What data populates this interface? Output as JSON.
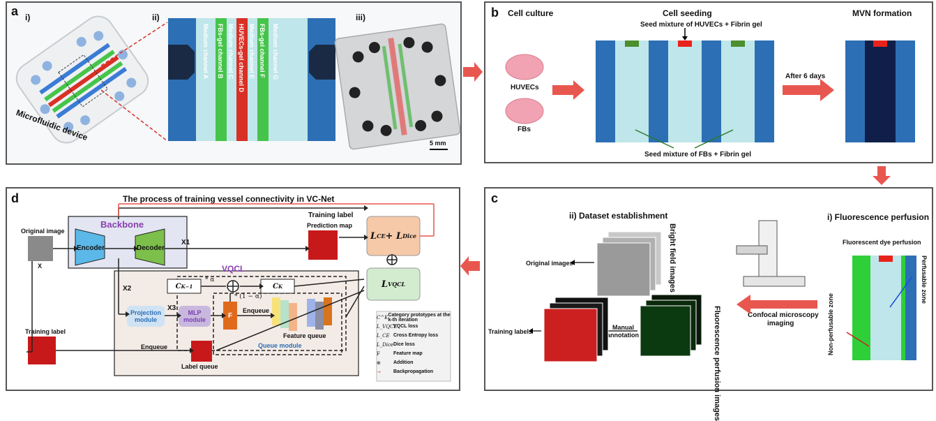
{
  "panel_a": {
    "label": "a",
    "sub_i": "i)",
    "sub_ii": "ii)",
    "sub_iii": "iii)",
    "device_label": "Microfluidic device",
    "channels": [
      "Medium channel A",
      "FBs-gel channel B",
      "Medium channel C",
      "HUVECs-gel channel D",
      "Medium channel E",
      "FBs-gel channel F",
      "Medium channel G"
    ],
    "scale_bar": "5 mm"
  },
  "panel_b": {
    "label": "b",
    "cell_culture": "Cell culture",
    "cell_seeding": "Cell seeding",
    "mvn_formation": "MVN formation",
    "seed_huvec": "Seed mixture of HUVECs + Fibrin gel",
    "seed_fbs": "Seed mixture of FBs + Fibrin gel",
    "huvecs": "HUVECs",
    "fbs": "FBs",
    "after_days": "After 6 days"
  },
  "panel_c": {
    "label": "c",
    "dataset_title": "ii)  Dataset establishment",
    "perfusion_title": "i)  Fluorescence perfusion",
    "dye_perfusion": "Fluorescent dye perfusion",
    "perfusable": "Perfusable zone",
    "non_perfusable": "Non-perfusable zone",
    "bright_field": "Bright field images",
    "original_images": "Original images",
    "fluor_images": "Fluorescence perfusion images",
    "confocal_1": "Confocal microscopy",
    "confocal_2": "imaging",
    "manual_1": "Manual",
    "manual_2": "annotation",
    "training_labels": "Training labels"
  },
  "panel_d": {
    "label": "d",
    "title": "The process of training vessel connectivity in VC-Net",
    "training_label_top": "Training label",
    "original_image": "Original image",
    "x_label": "X",
    "backbone": "Backbone",
    "encoder": "Encoder",
    "decoder": "Decoder",
    "x1": "X1",
    "x2": "X2",
    "x3": "X3",
    "prediction_map": "Prediction map",
    "loss_main_1": "L",
    "loss_main_sub1": "CE",
    "loss_main_plus": " + L",
    "loss_main_sub2": "Dice",
    "vqcl": "VQCL",
    "loss_vqcl": "L",
    "loss_vqcl_sub": "VQCL",
    "ck1": "C",
    "ck1_sup": "K−1",
    "ck": "C",
    "ck_sup": "K",
    "alpha": "* α",
    "one_minus_alpha": "* (1 − α)",
    "projection_1": "Projection",
    "projection_2": "module",
    "mlp_1": "MLP",
    "mlp_2": "module",
    "f_box": "F",
    "enqueue_1": "Enqueue",
    "feature_queue": "Feature queue",
    "queue_module": "Queue module",
    "training_label_left": "Training label",
    "enqueue_2": "Enqueue",
    "label_queue": "Label queue",
    "legend": [
      {
        "sym": "C^K",
        "desc": "Category prototypes at the k-th iteration"
      },
      {
        "sym": "L_VQCL",
        "desc": "VQCL loss"
      },
      {
        "sym": "L_CE",
        "desc": "Cross Entropy loss"
      },
      {
        "sym": "L_Dice",
        "desc": "Dice loss"
      },
      {
        "sym": "F",
        "desc": "Feature map"
      },
      {
        "sym": "⊕",
        "desc": "Addition"
      },
      {
        "sym": "→",
        "desc": "Backpropagation"
      }
    ]
  },
  "colors": {
    "arrow_red": "#e8574f",
    "blue_channel": "#2c6fb5",
    "light_cyan": "#bfe6ea",
    "red_marker": "#e8231c",
    "green_marker": "#4b8f2f",
    "encoder": "#5bb8e8",
    "decoder": "#7cbf4a",
    "loss_orange": "#f6c9a8",
    "loss_green": "#d3ecd0",
    "backbone_bg": "#e3e6f2",
    "vqcl_bg": "#f3ebe6",
    "projection": "#cfe3f4",
    "mlp": "#c9b8de",
    "f_box": "#e06a1c"
  }
}
